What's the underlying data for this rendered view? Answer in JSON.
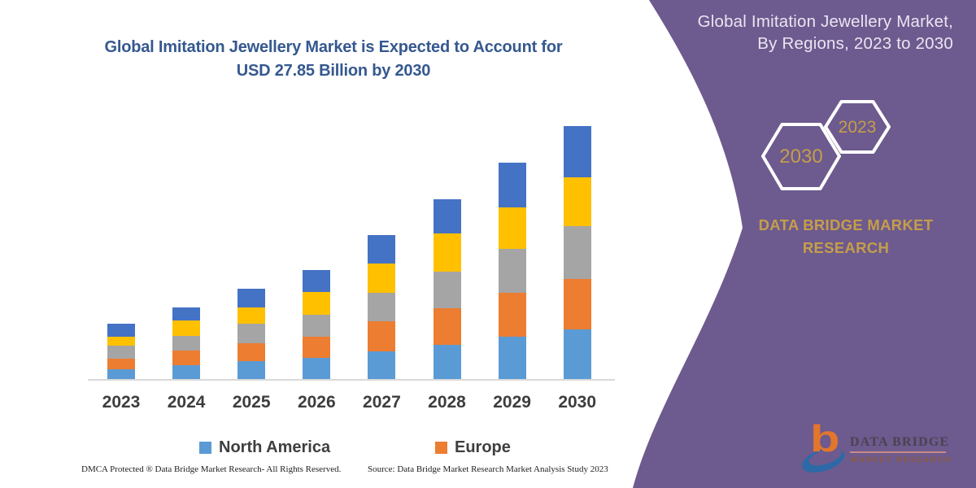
{
  "right_panel": {
    "title_line1": "Global Imitation Jewellery Market,",
    "title_line2": "By Regions, 2023 to 2030",
    "hexagon_front": "2030",
    "hexagon_back": "2023",
    "brand_line1": "DATA BRIDGE MARKET",
    "brand_line2": "RESEARCH",
    "background_color": "#6d5a8e",
    "gold_color": "#c59e4a"
  },
  "chart_title_line1": "Global Imitation Jewellery Market is Expected to Account for",
  "chart_title_line2": "USD 27.85 Billion by 2030",
  "chart_data": {
    "type": "bar",
    "stacked": true,
    "title": "Global Imitation Jewellery Market is Expected to Account for USD 27.85 Billion by 2030",
    "unit": "USD billion",
    "categories": [
      "2023",
      "2024",
      "2025",
      "2026",
      "2027",
      "2028",
      "2029",
      "2030"
    ],
    "series": [
      {
        "name": "North America",
        "color": "#5B9BD5",
        "values": [
          1.07,
          1.52,
          1.97,
          2.33,
          3.05,
          3.76,
          4.66,
          5.47
        ]
      },
      {
        "name": "Europe",
        "color": "#ED7D31",
        "values": [
          1.16,
          1.61,
          1.97,
          2.33,
          3.31,
          4.03,
          4.84,
          5.56
        ]
      },
      {
        "name": "",
        "color": "#A5A5A5",
        "values": [
          1.43,
          1.61,
          2.15,
          2.42,
          3.14,
          4.03,
          4.84,
          5.82
        ]
      },
      {
        "name": "",
        "color": "#FFC000",
        "values": [
          0.99,
          1.7,
          1.79,
          2.51,
          3.23,
          4.21,
          4.57,
          5.38
        ]
      },
      {
        "name": "",
        "color": "#4472C4",
        "values": [
          1.43,
          1.43,
          2.06,
          2.42,
          3.14,
          3.76,
          4.93,
          5.64
        ]
      }
    ],
    "totals": [
      6.08,
      7.87,
      9.94,
      12.01,
      15.87,
      19.79,
      23.84,
      27.85
    ],
    "legend": [
      "North America",
      "Europe"
    ],
    "legend_position": "bottom",
    "grid": false,
    "y_axis_visible": false
  },
  "footer": {
    "left": "DMCA Protected ® Data Bridge Market Research-  All Rights Reserved.",
    "right": "Source: Data Bridge Market Research  Market Analysis Study 2023"
  },
  "logo": {
    "letter": "b",
    "name": "DATA BRIDGE",
    "tagline": "MARKET RESEARCH"
  }
}
